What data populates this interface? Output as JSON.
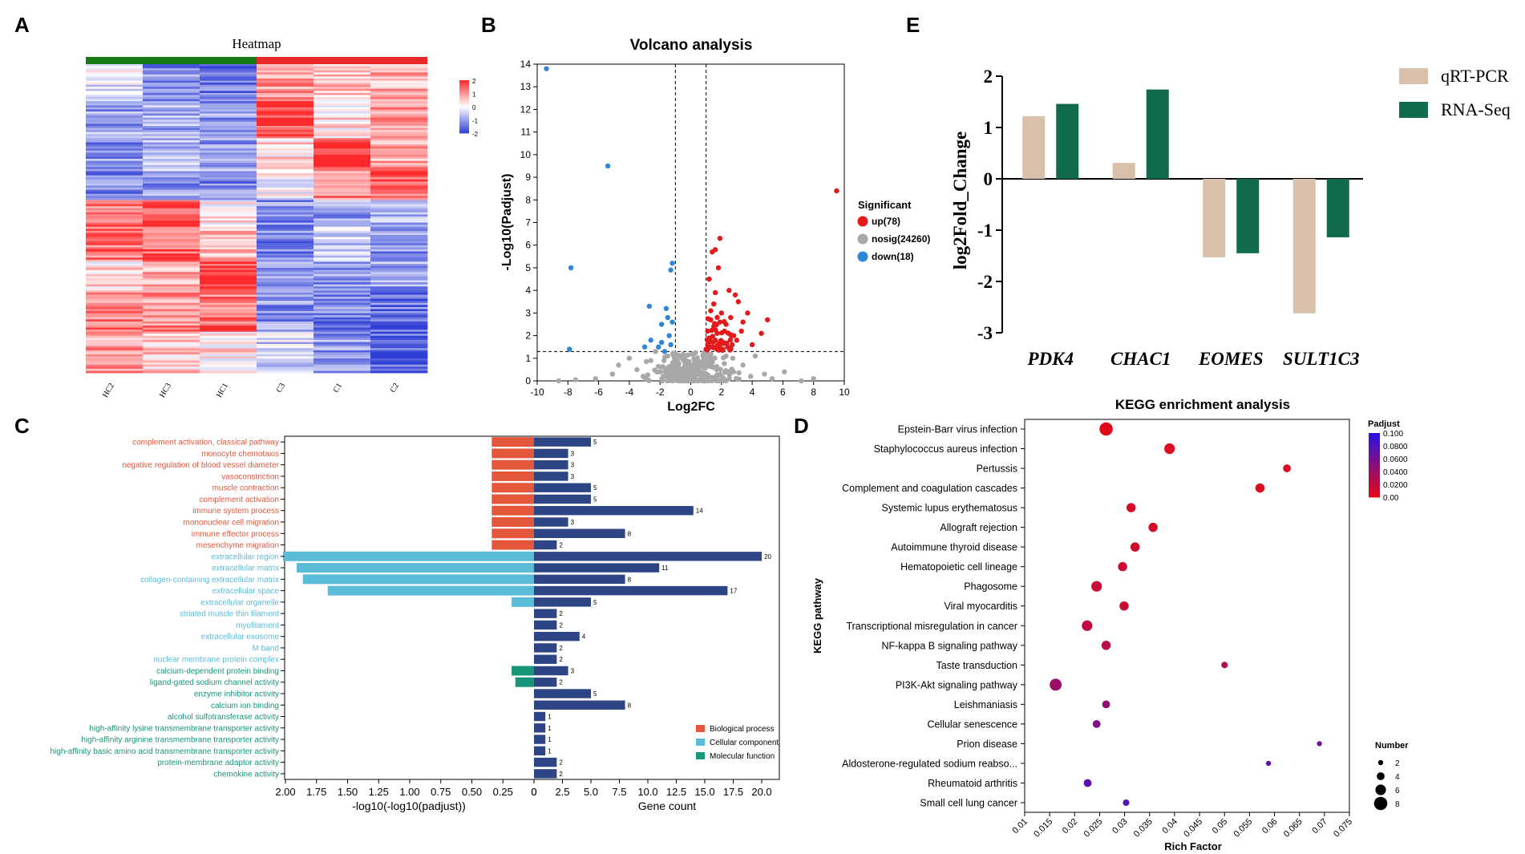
{
  "panels": {
    "a": "A",
    "b": "B",
    "c": "C",
    "d": "D",
    "e": "E"
  },
  "colors": {
    "red": "#e8282a",
    "green": "#167a16",
    "blue": "#2f3fd6",
    "grey": "#a8a8a8",
    "bp": "#e4573b",
    "cc": "#5bbcd8",
    "mf": "#17967a",
    "navy": "#2e4585",
    "beige": "#d8c0aa",
    "rnaseq": "#0f6b4a",
    "up": "#e31a1c",
    "down": "#2f86d6"
  },
  "chart_data": [
    {
      "id": "heatmap",
      "type": "heatmap",
      "title": "Heatmap",
      "columns": [
        "HC2",
        "HC3",
        "HC1",
        "C3",
        "C1",
        "C2"
      ],
      "groups": [
        {
          "name": "HC",
          "color": "#167a16",
          "columns": 3
        },
        {
          "name": "C",
          "color": "#e8282a",
          "columns": 3
        }
      ],
      "colorbar": {
        "ticks": [
          "2",
          "1",
          "0",
          "-1",
          "-2"
        ],
        "range": [
          -2,
          2
        ]
      }
    },
    {
      "id": "volcano",
      "type": "scatter",
      "title": "Volcano analysis",
      "xlabel": "Log2FC",
      "ylabel": "-Log10(Padjust)",
      "xlim": [
        -10,
        10
      ],
      "ylim": [
        0,
        14
      ],
      "xticks": [
        -10,
        -8,
        -6,
        -4,
        -2,
        0,
        2,
        4,
        6,
        8,
        10
      ],
      "yticks": [
        0,
        1,
        2,
        3,
        4,
        5,
        6,
        7,
        8,
        9,
        10,
        11,
        12,
        13,
        14
      ],
      "thresholds": {
        "x": [
          -1,
          1
        ],
        "y": 1.3
      },
      "legend_title": "Significant",
      "legend": [
        {
          "label": "up(78)",
          "color": "#e31a1c"
        },
        {
          "label": "nosig(24260)",
          "color": "#a8a8a8"
        },
        {
          "label": "down(18)",
          "color": "#2f86d6"
        }
      ],
      "up_points": [
        [
          9.5,
          8.4
        ],
        [
          1.9,
          6.3
        ],
        [
          1.6,
          5.8
        ],
        [
          1.4,
          5.7
        ],
        [
          1.8,
          5.0
        ],
        [
          1.2,
          4.5
        ],
        [
          2.5,
          4.0
        ],
        [
          2.9,
          3.8
        ],
        [
          1.6,
          3.9
        ],
        [
          3.1,
          3.5
        ],
        [
          3.7,
          3.0
        ],
        [
          1.3,
          3.1
        ],
        [
          4.6,
          2.1
        ],
        [
          5.0,
          2.7
        ],
        [
          3.4,
          2.6
        ],
        [
          4.0,
          1.6
        ],
        [
          1.1,
          1.6
        ],
        [
          2.2,
          2.2
        ],
        [
          1.5,
          2.4
        ],
        [
          2.0,
          3.0
        ],
        [
          2.6,
          2.8
        ],
        [
          1.2,
          1.9
        ],
        [
          2.4,
          1.5
        ],
        [
          3.0,
          1.8
        ],
        [
          1.7,
          1.4
        ],
        [
          1.3,
          2.7
        ],
        [
          2.1,
          1.7
        ],
        [
          1.4,
          1.5
        ],
        [
          2.8,
          2.0
        ],
        [
          1.9,
          2.6
        ],
        [
          1.6,
          1.8
        ],
        [
          2.3,
          2.5
        ],
        [
          1.1,
          2.2
        ],
        [
          3.3,
          2.2
        ],
        [
          1.8,
          1.6
        ],
        [
          2.7,
          1.6
        ],
        [
          1.5,
          3.4
        ],
        [
          1.0,
          1.4
        ]
      ],
      "down_points": [
        [
          -9.4,
          13.8
        ],
        [
          -5.4,
          9.5
        ],
        [
          -7.8,
          5.0
        ],
        [
          -1.2,
          5.2
        ],
        [
          -1.3,
          4.9
        ],
        [
          -2.7,
          3.3
        ],
        [
          -1.6,
          3.2
        ],
        [
          -1.5,
          2.8
        ],
        [
          -1.9,
          2.5
        ],
        [
          -2.6,
          1.8
        ],
        [
          -1.4,
          2.0
        ],
        [
          -7.9,
          1.4
        ],
        [
          -2.1,
          1.5
        ],
        [
          -1.7,
          1.3
        ],
        [
          -1.2,
          2.6
        ],
        [
          -3.0,
          1.5
        ],
        [
          -1.9,
          1.7
        ],
        [
          -1.3,
          1.6
        ]
      ],
      "nosig_points": [
        [
          -0.5,
          0.3
        ],
        [
          0.4,
          0.5
        ],
        [
          -0.9,
          0.8
        ],
        [
          0.8,
          0.9
        ],
        [
          -2.0,
          0.4
        ],
        [
          1.6,
          0.6
        ],
        [
          -3.5,
          0.5
        ],
        [
          2.8,
          0.4
        ],
        [
          -1.5,
          1.1
        ],
        [
          1.3,
          1.0
        ],
        [
          -0.2,
          0.1
        ],
        [
          0.1,
          0.2
        ],
        [
          -4.7,
          0.7
        ],
        [
          4.8,
          0.3
        ],
        [
          -6.2,
          0.1
        ],
        [
          6.1,
          0.4
        ],
        [
          8.0,
          0.1
        ],
        [
          -7.5,
          0.05
        ],
        [
          5.3,
          0.1
        ],
        [
          -2.6,
          0.9
        ],
        [
          2.3,
          1.1
        ],
        [
          -0.7,
          0.4
        ],
        [
          0.6,
          0.7
        ],
        [
          -1.1,
          0.6
        ],
        [
          3.4,
          0.7
        ],
        [
          -3.1,
          0.2
        ],
        [
          0.9,
          0.1
        ],
        [
          -0.3,
          0.9
        ],
        [
          0.2,
          1.2
        ],
        [
          -1.8,
          0.2
        ],
        [
          1.9,
          0.3
        ],
        [
          -4.0,
          1.0
        ],
        [
          4.2,
          1.1
        ],
        [
          -5.1,
          0.3
        ],
        [
          3.9,
          0.2
        ],
        [
          -2.3,
          1.3
        ],
        [
          1.0,
          1.3
        ],
        [
          -1.0,
          1.2
        ],
        [
          7.2,
          0.0
        ],
        [
          -8.6,
          0.0
        ]
      ]
    },
    {
      "id": "go_enrichment",
      "type": "bar",
      "left_axis_label": "-log10(-log10(padjust))",
      "right_axis_label": "Gene count",
      "left_ticks": [
        "2.00",
        "1.75",
        "1.50",
        "1.25",
        "1.00",
        "0.75",
        "0.50",
        "0.25",
        "0"
      ],
      "right_ticks": [
        "0",
        "2.5",
        "5.0",
        "7.5",
        "10.0",
        "12.5",
        "15.0",
        "17.5",
        "20.0"
      ],
      "categories": [
        {
          "term": "complement activation, classical pathway",
          "cat": "bp",
          "score": 0.34,
          "count": 5
        },
        {
          "term": "monocyte chemotaxis",
          "cat": "bp",
          "score": 0.34,
          "count": 3
        },
        {
          "term": "negative regulation of blood vessel diameter",
          "cat": "bp",
          "score": 0.34,
          "count": 3
        },
        {
          "term": "vasoconstriction",
          "cat": "bp",
          "score": 0.34,
          "count": 3
        },
        {
          "term": "muscle contraction",
          "cat": "bp",
          "score": 0.34,
          "count": 5
        },
        {
          "term": "complement activation",
          "cat": "bp",
          "score": 0.34,
          "count": 5
        },
        {
          "term": "immune system process",
          "cat": "bp",
          "score": 0.34,
          "count": 14
        },
        {
          "term": "mononuclear cell migration",
          "cat": "bp",
          "score": 0.34,
          "count": 3
        },
        {
          "term": "immune effector process",
          "cat": "bp",
          "score": 0.34,
          "count": 8
        },
        {
          "term": "mesenchyme migration",
          "cat": "bp",
          "score": 0.34,
          "count": 2
        },
        {
          "term": "extracellular region",
          "cat": "cc",
          "score": 2.02,
          "count": 20
        },
        {
          "term": "extracellular matrix",
          "cat": "cc",
          "score": 1.91,
          "count": 11
        },
        {
          "term": "collagen-containing extracellular matrix",
          "cat": "cc",
          "score": 1.86,
          "count": 8
        },
        {
          "term": "extracellular space",
          "cat": "cc",
          "score": 1.66,
          "count": 17
        },
        {
          "term": "extracellular organelle",
          "cat": "cc",
          "score": 0.18,
          "count": 5
        },
        {
          "term": "striated muscle thin filament",
          "cat": "cc",
          "score": 0,
          "count": 2
        },
        {
          "term": "myofilament",
          "cat": "cc",
          "score": 0,
          "count": 2
        },
        {
          "term": "extracellular exosome",
          "cat": "cc",
          "score": 0,
          "count": 4
        },
        {
          "term": "M band",
          "cat": "cc",
          "score": 0,
          "count": 2
        },
        {
          "term": "nuclear membrane protein complex",
          "cat": "cc",
          "score": 0,
          "count": 2
        },
        {
          "term": "calcium-dependent protein binding",
          "cat": "mf",
          "score": 0.18,
          "count": 3
        },
        {
          "term": "ligand-gated sodium channel activity",
          "cat": "mf",
          "score": 0.15,
          "count": 2
        },
        {
          "term": "enzyme inhibitor activity",
          "cat": "mf",
          "score": 0,
          "count": 5
        },
        {
          "term": "calcium ion binding",
          "cat": "mf",
          "score": 0,
          "count": 8
        },
        {
          "term": "alcohol sulfotransferase activity",
          "cat": "mf",
          "score": 0,
          "count": 1
        },
        {
          "term": "high-affinity lysine transmembrane transporter activity",
          "cat": "mf",
          "score": 0,
          "count": 1
        },
        {
          "term": "high-affinity arginine transmembrane transporter activity",
          "cat": "mf",
          "score": 0,
          "count": 1
        },
        {
          "term": "high-affinity basic amino acid transmembrane transporter activity",
          "cat": "mf",
          "score": 0,
          "count": 1
        },
        {
          "term": "protein-membrane adaptor activity",
          "cat": "mf",
          "score": 0,
          "count": 2
        },
        {
          "term": "chemokine activity",
          "cat": "mf",
          "score": 0,
          "count": 2
        }
      ],
      "legend": [
        {
          "label": "Biological process",
          "key": "bp"
        },
        {
          "label": "Cellular component",
          "key": "cc"
        },
        {
          "label": "Molecular function",
          "key": "mf"
        }
      ]
    },
    {
      "id": "kegg",
      "type": "scatter",
      "title": "KEGG enrichment analysis",
      "xlabel": "Rich Factor",
      "ylabel": "KEGG pathway",
      "xlim": [
        0.01,
        0.075
      ],
      "xticks": [
        "0.01",
        "0.015",
        "0.02",
        "0.025",
        "0.03",
        "0.035",
        "0.04",
        "0.045",
        "0.05",
        "0.055",
        "0.06",
        "0.065",
        "0.07",
        "0.075"
      ],
      "pathways": [
        {
          "name": "Epstein-Barr virus infection",
          "rich": 0.0263,
          "padj": 0.003,
          "n": 8
        },
        {
          "name": "Staphylococcus aureus infection",
          "rich": 0.039,
          "padj": 0.005,
          "n": 6
        },
        {
          "name": "Pertussis",
          "rich": 0.0625,
          "padj": 0.008,
          "n": 4
        },
        {
          "name": "Complement and coagulation cascades",
          "rich": 0.0571,
          "padj": 0.006,
          "n": 5
        },
        {
          "name": "Systemic lupus erythematosus",
          "rich": 0.0313,
          "padj": 0.01,
          "n": 5
        },
        {
          "name": "Allograft rejection",
          "rich": 0.0357,
          "padj": 0.01,
          "n": 5
        },
        {
          "name": "Autoimmune thyroid disease",
          "rich": 0.0321,
          "padj": 0.012,
          "n": 5
        },
        {
          "name": "Hematopoietic cell lineage",
          "rich": 0.0296,
          "padj": 0.015,
          "n": 5
        },
        {
          "name": "Phagosome",
          "rich": 0.0244,
          "padj": 0.015,
          "n": 6
        },
        {
          "name": "Viral myocarditis",
          "rich": 0.0299,
          "padj": 0.015,
          "n": 5
        },
        {
          "name": "Transcriptional misregulation in cancer",
          "rich": 0.0225,
          "padj": 0.02,
          "n": 6
        },
        {
          "name": "NF-kappa B signaling pathway",
          "rich": 0.0263,
          "padj": 0.025,
          "n": 5
        },
        {
          "name": "Taste transduction",
          "rich": 0.05,
          "padj": 0.03,
          "n": 3
        },
        {
          "name": "PI3K-Akt signaling pathway",
          "rich": 0.0162,
          "padj": 0.04,
          "n": 7
        },
        {
          "name": "Leishmaniasis",
          "rich": 0.0263,
          "padj": 0.045,
          "n": 4
        },
        {
          "name": "Cellular senescence",
          "rich": 0.0244,
          "padj": 0.055,
          "n": 4
        },
        {
          "name": "Prion disease",
          "rich": 0.069,
          "padj": 0.06,
          "n": 2
        },
        {
          "name": "Aldosterone-regulated sodium reabso...",
          "rich": 0.0588,
          "padj": 0.07,
          "n": 2
        },
        {
          "name": "Rheumatoid arthritis",
          "rich": 0.0226,
          "padj": 0.072,
          "n": 4
        },
        {
          "name": "Small cell lung cancer",
          "rich": 0.0303,
          "padj": 0.08,
          "n": 3
        }
      ],
      "padjust_title": "Padjust",
      "padjust_ticks": [
        "0.100",
        "0.0800",
        "0.0600",
        "0.0400",
        "0.0200",
        "0.00"
      ],
      "number_title": "Number",
      "number_legend": [
        2,
        4,
        6,
        8
      ]
    },
    {
      "id": "validation",
      "type": "bar",
      "ylabel": "log2Fold_Change",
      "ylim": [
        -3,
        2
      ],
      "yticks": [
        "2",
        "1",
        "0",
        "-1",
        "-2",
        "-3"
      ],
      "categories": [
        "PDK4",
        "CHAC1",
        "EOMES",
        "SULT1C3"
      ],
      "series": [
        {
          "name": "qRT-PCR",
          "color": "#d8c0aa",
          "values": [
            1.22,
            0.31,
            -1.53,
            -2.62
          ]
        },
        {
          "name": "RNA-Seq",
          "color": "#0f6b4a",
          "values": [
            1.46,
            1.74,
            -1.45,
            -1.14
          ]
        }
      ]
    }
  ]
}
